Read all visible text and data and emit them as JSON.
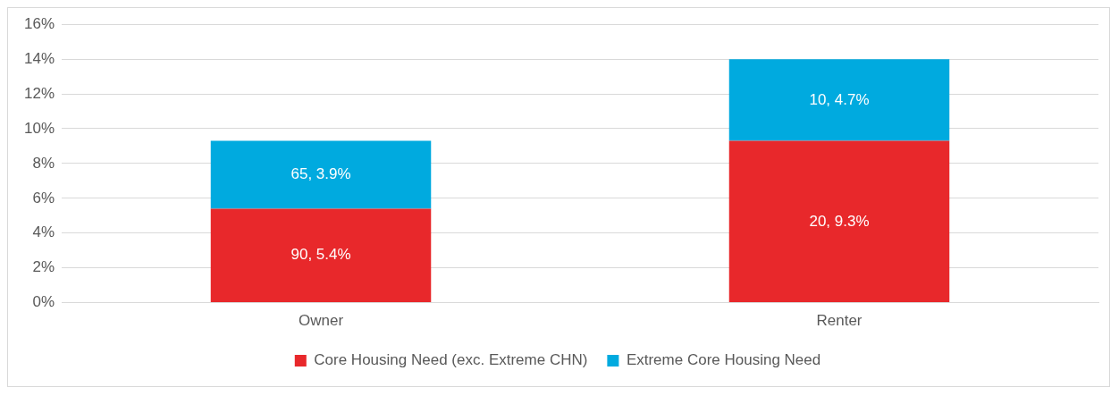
{
  "chart_data": {
    "type": "bar",
    "stacked": true,
    "categories": [
      "Owner",
      "Renter"
    ],
    "series": [
      {
        "name": "Core Housing Need (exc. Extreme CHN)",
        "color": "#e8282b",
        "values": [
          5.4,
          9.3
        ],
        "value_labels": [
          "90, 5.4%",
          "20, 9.3%"
        ]
      },
      {
        "name": "Extreme Core Housing Need",
        "color": "#00aadf",
        "values": [
          3.9,
          4.7
        ],
        "value_labels": [
          "65, 3.9%",
          "10, 4.7%"
        ]
      }
    ],
    "ylim": [
      0,
      16
    ],
    "yticks": [
      {
        "value": 0,
        "label": "0%"
      },
      {
        "value": 2,
        "label": "2%"
      },
      {
        "value": 4,
        "label": "4%"
      },
      {
        "value": 6,
        "label": "6%"
      },
      {
        "value": 8,
        "label": "8%"
      },
      {
        "value": 10,
        "label": "10%"
      },
      {
        "value": 12,
        "label": "12%"
      },
      {
        "value": 14,
        "label": "14%"
      },
      {
        "value": 16,
        "label": "16%"
      }
    ],
    "grid": "y",
    "legend": "bottom"
  }
}
